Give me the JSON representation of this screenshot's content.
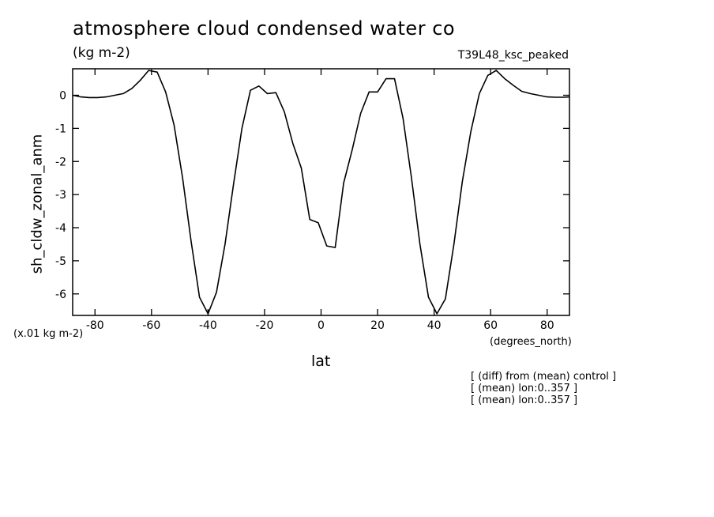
{
  "chart_data": {
    "type": "line",
    "title": "atmosphere cloud condensed water co",
    "units_label": "(kg m-2)",
    "run_label": "T39L48_ksc_peaked",
    "xlabel": "lat",
    "ylabel": "sh_cldw_zonal_anm",
    "x_units": "(degrees_north)",
    "y_scale_note": "(x.01 kg m-2)",
    "xlim": [
      -87.9,
      87.9
    ],
    "ylim": [
      -6.65,
      0.8
    ],
    "x_ticks": [
      -80,
      -60,
      -40,
      -20,
      0,
      20,
      40,
      60,
      80
    ],
    "y_ticks": [
      0,
      -1,
      -2,
      -3,
      -4,
      -5,
      -6
    ],
    "grid": false,
    "series": [
      {
        "x": [
          -87.9,
          -85,
          -82,
          -79,
          -76,
          -73,
          -70,
          -67,
          -64,
          -61,
          -58,
          -55,
          -52,
          -49,
          -46,
          -43,
          -40,
          -37,
          -34,
          -31,
          -28,
          -25,
          -22,
          -19,
          -16,
          -13,
          -10,
          -7,
          -4,
          -1,
          2,
          5,
          8,
          11,
          14,
          17,
          20,
          23,
          26,
          29,
          32,
          35,
          38,
          41,
          44,
          47,
          50,
          53,
          56,
          59,
          62,
          65,
          68,
          71,
          74,
          77,
          80,
          83,
          86,
          87.9
        ],
        "y": [
          0.0,
          -0.05,
          -0.07,
          -0.07,
          -0.05,
          0.0,
          0.05,
          0.2,
          0.45,
          0.75,
          0.7,
          0.1,
          -0.9,
          -2.5,
          -4.4,
          -6.1,
          -6.6,
          -5.95,
          -4.5,
          -2.7,
          -1.0,
          0.15,
          0.28,
          0.05,
          0.08,
          -0.5,
          -1.45,
          -2.2,
          -3.75,
          -3.85,
          -4.55,
          -4.6,
          -2.65,
          -1.65,
          -0.55,
          0.1,
          0.1,
          0.5,
          0.5,
          -0.7,
          -2.5,
          -4.5,
          -6.1,
          -6.6,
          -6.15,
          -4.5,
          -2.6,
          -1.1,
          0.05,
          0.6,
          0.75,
          0.5,
          0.3,
          0.12,
          0.05,
          0.0,
          -0.05,
          -0.06,
          -0.06,
          -0.05
        ]
      }
    ]
  },
  "notes": [
    "[ (diff) from (mean) control ]",
    "[ (mean) lon:0..357 ]",
    "[ (mean) lon:0..357 ]"
  ]
}
